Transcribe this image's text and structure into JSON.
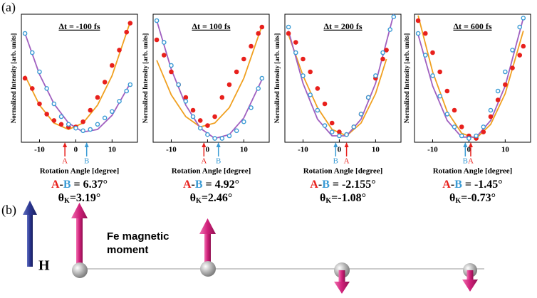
{
  "panel_label": "(a)",
  "chart_data": [
    {
      "type": "scatter",
      "title": "Δt = -100 fs",
      "xlabel": "Rotation Angle [degree]",
      "ylabel": "Normalized Intensity [arb. units]",
      "xlim": [
        -15,
        17
      ],
      "ylim": [
        0,
        1
      ],
      "xticks": [
        -10,
        0,
        10
      ],
      "series": [
        {
          "marker": "filled",
          "color": "#e8201c",
          "x": [
            -14,
            -12,
            -10,
            -8,
            -6,
            -4,
            -2,
            0,
            2,
            4,
            6,
            8,
            10,
            12,
            14,
            15
          ],
          "values": [
            0.5,
            0.42,
            0.3,
            0.22,
            0.17,
            0.14,
            0.12,
            0.12,
            0.16,
            0.25,
            0.35,
            0.47,
            0.6,
            0.72,
            0.86,
            0.93
          ]
        },
        {
          "marker": "open",
          "color": "#3a9bd5",
          "x": [
            -14,
            -12,
            -10,
            -8,
            -6,
            -4,
            -2,
            0,
            2,
            4,
            6,
            8,
            10,
            12,
            14,
            15
          ],
          "values": [
            0.85,
            0.7,
            0.55,
            0.42,
            0.3,
            0.2,
            0.14,
            0.11,
            0.09,
            0.1,
            0.14,
            0.19,
            0.24,
            0.32,
            0.4,
            0.45
          ]
        },
        {
          "marker": "line",
          "color": "#f0a020",
          "x": [
            -14,
            -10,
            -6,
            -2,
            2,
            6,
            10,
            15
          ],
          "values": [
            0.52,
            0.29,
            0.15,
            0.1,
            0.15,
            0.29,
            0.52,
            0.94
          ]
        },
        {
          "marker": "line",
          "color": "#a060c0",
          "x": [
            -14,
            -10,
            -6,
            -2,
            2,
            6,
            10,
            15
          ],
          "values": [
            0.85,
            0.53,
            0.3,
            0.15,
            0.08,
            0.1,
            0.21,
            0.46
          ]
        }
      ],
      "markers": [
        {
          "label": "A",
          "x": -3,
          "color": "#e8201c"
        },
        {
          "label": "B",
          "x": 3,
          "color": "#3a9bd5"
        }
      ],
      "difference": {
        "parts": [
          "A",
          "-",
          "B",
          " = 6.37°"
        ],
        "colors": [
          "#e8201c",
          "#000000",
          "#3a9bd5",
          "#000000"
        ]
      },
      "kerr": {
        "symbol": "θ",
        "subscript": "K",
        "value": "=3.19°"
      }
    },
    {
      "type": "scatter",
      "title": "Δt = 100 fs",
      "xlabel": "Rotation Angle [degree]",
      "ylabel": "Normalized Intensity [arb. units]",
      "xlim": [
        -15,
        17
      ],
      "ylim": [
        0,
        1
      ],
      "xticks": [
        -10,
        0,
        10
      ],
      "series": [
        {
          "marker": "filled",
          "color": "#e8201c",
          "x": [
            -14,
            -12,
            -10,
            -8,
            -6,
            -4,
            -2,
            0,
            2,
            4,
            6,
            8,
            10,
            12,
            14,
            15
          ],
          "values": [
            0.8,
            0.68,
            0.55,
            0.45,
            0.35,
            0.25,
            0.17,
            0.13,
            0.2,
            0.35,
            0.45,
            0.55,
            0.65,
            0.75,
            0.85,
            0.9
          ]
        },
        {
          "marker": "open",
          "color": "#3a9bd5",
          "x": [
            -14,
            -12,
            -10,
            -8,
            -6,
            -4,
            -2,
            0,
            2,
            4,
            6,
            8,
            10,
            12,
            14,
            15
          ],
          "values": [
            0.95,
            0.78,
            0.6,
            0.45,
            0.32,
            0.2,
            0.11,
            0.06,
            0.03,
            0.03,
            0.05,
            0.09,
            0.16,
            0.27,
            0.42,
            0.5
          ]
        },
        {
          "marker": "line",
          "color": "#f0a020",
          "x": [
            -14,
            -10,
            -6,
            -2,
            2,
            6,
            10,
            15
          ],
          "values": [
            0.64,
            0.37,
            0.2,
            0.12,
            0.15,
            0.27,
            0.5,
            0.91
          ]
        },
        {
          "marker": "line",
          "color": "#a060c0",
          "x": [
            -14,
            -10,
            -6,
            -2,
            2,
            6,
            10,
            15
          ],
          "values": [
            0.95,
            0.57,
            0.29,
            0.11,
            0.03,
            0.06,
            0.19,
            0.49
          ]
        }
      ],
      "markers": [
        {
          "label": "A",
          "x": -1,
          "color": "#e8201c"
        },
        {
          "label": "B",
          "x": 3,
          "color": "#3a9bd5"
        }
      ],
      "difference": {
        "parts": [
          "A",
          "-",
          "B",
          " = 4.92°"
        ],
        "colors": [
          "#e8201c",
          "#000000",
          "#3a9bd5",
          "#000000"
        ]
      },
      "kerr": {
        "symbol": "θ",
        "subscript": "K",
        "value": "=2.46°"
      }
    },
    {
      "type": "scatter",
      "title": "Δt = 200 fs",
      "xlabel": "Rotation Angle [degree]",
      "ylabel": "Normalized Intensity [arb. units]",
      "xlim": [
        -15,
        17
      ],
      "ylim": [
        0,
        1
      ],
      "xticks": [
        -10,
        0,
        10
      ],
      "series": [
        {
          "marker": "filled",
          "color": "#e8201c",
          "x": [
            -14,
            -12,
            -10,
            -8,
            -6,
            -4,
            -2,
            0,
            2,
            4,
            6,
            8,
            10,
            12,
            13
          ],
          "values": [
            0.85,
            0.78,
            0.65,
            0.55,
            0.42,
            0.3,
            0.15,
            0.08,
            0.06,
            0.12,
            0.22,
            0.35,
            0.5,
            0.65,
            0.72
          ]
        },
        {
          "marker": "open",
          "color": "#3a9bd5",
          "x": [
            -14,
            -12,
            -10,
            -8,
            -6,
            -4,
            -2,
            0,
            2,
            4,
            6,
            8,
            10,
            12,
            14,
            15
          ],
          "values": [
            0.9,
            0.7,
            0.52,
            0.37,
            0.25,
            0.13,
            0.08,
            0.05,
            0.06,
            0.12,
            0.22,
            0.35,
            0.52,
            0.7,
            0.88,
            0.98
          ]
        },
        {
          "marker": "line",
          "color": "#f0a020",
          "x": [
            -14,
            -10,
            -6,
            -2,
            2,
            6,
            10,
            13
          ],
          "values": [
            0.84,
            0.52,
            0.27,
            0.1,
            0.05,
            0.15,
            0.38,
            0.65
          ]
        },
        {
          "marker": "line",
          "color": "#a060c0",
          "x": [
            -14,
            -10,
            -6,
            -2,
            2,
            6,
            10,
            15
          ],
          "values": [
            0.87,
            0.46,
            0.18,
            0.05,
            0.05,
            0.18,
            0.46,
            1.0
          ]
        }
      ],
      "markers": [
        {
          "label": "B",
          "x": -1,
          "color": "#3a9bd5"
        },
        {
          "label": "A",
          "x": 2,
          "color": "#e8201c"
        }
      ],
      "difference": {
        "parts": [
          "A",
          "-",
          "B",
          " = -2.155°"
        ],
        "colors": [
          "#e8201c",
          "#000000",
          "#3a9bd5",
          "#000000"
        ]
      },
      "kerr": {
        "symbol": "θ",
        "subscript": "K",
        "value": "=-1.08°"
      }
    },
    {
      "type": "scatter",
      "title": "Δt = 600 fs",
      "xlabel": "Rotation Angle [degree]",
      "ylabel": "Normalized Intensity [arb. units]",
      "xlim": [
        -15,
        17
      ],
      "ylim": [
        0,
        1
      ],
      "xticks": [
        -10,
        0,
        10
      ],
      "series": [
        {
          "marker": "filled",
          "color": "#e8201c",
          "x": [
            -14,
            -12,
            -10,
            -8,
            -6,
            -4,
            -2,
            0,
            2,
            4,
            6,
            8,
            10,
            12,
            14,
            15
          ],
          "values": [
            0.95,
            0.85,
            0.7,
            0.55,
            0.4,
            0.25,
            0.12,
            0.05,
            0.03,
            0.08,
            0.2,
            0.33,
            0.45,
            0.58,
            0.68,
            0.75
          ]
        },
        {
          "marker": "open",
          "color": "#3a9bd5",
          "x": [
            -14,
            -12,
            -10,
            -8,
            -6,
            -4,
            -2,
            0,
            2,
            4,
            6,
            8,
            10,
            12,
            14,
            15
          ],
          "values": [
            0.85,
            0.68,
            0.52,
            0.36,
            0.22,
            0.12,
            0.05,
            0.03,
            0.05,
            0.12,
            0.25,
            0.4,
            0.55,
            0.72,
            0.9,
            0.97
          ]
        },
        {
          "marker": "line",
          "color": "#f0a020",
          "x": [
            -14,
            -10,
            -6,
            -2,
            2,
            6,
            10,
            15
          ],
          "values": [
            0.99,
            0.55,
            0.24,
            0.07,
            0.03,
            0.14,
            0.38,
            0.87
          ]
        },
        {
          "marker": "line",
          "color": "#a060c0",
          "x": [
            -14,
            -10,
            -6,
            -2,
            2,
            6,
            10,
            15
          ],
          "values": [
            0.84,
            0.44,
            0.17,
            0.04,
            0.04,
            0.17,
            0.44,
            0.97
          ]
        }
      ],
      "markers": [
        {
          "label": "B",
          "x": -1,
          "color": "#3a9bd5"
        },
        {
          "label": "A",
          "x": 0.5,
          "color": "#e8201c"
        }
      ],
      "difference": {
        "parts": [
          "A",
          "-",
          "B",
          " = -1.45°"
        ],
        "colors": [
          "#e8201c",
          "#000000",
          "#3a9bd5",
          "#000000"
        ]
      },
      "kerr": {
        "symbol": "θ",
        "subscript": "K",
        "value": "=-0.73°"
      }
    }
  ],
  "diagram": {
    "label": "(b)",
    "field_label": "H",
    "moment_label": [
      "Fe magnetic",
      "moment"
    ]
  }
}
